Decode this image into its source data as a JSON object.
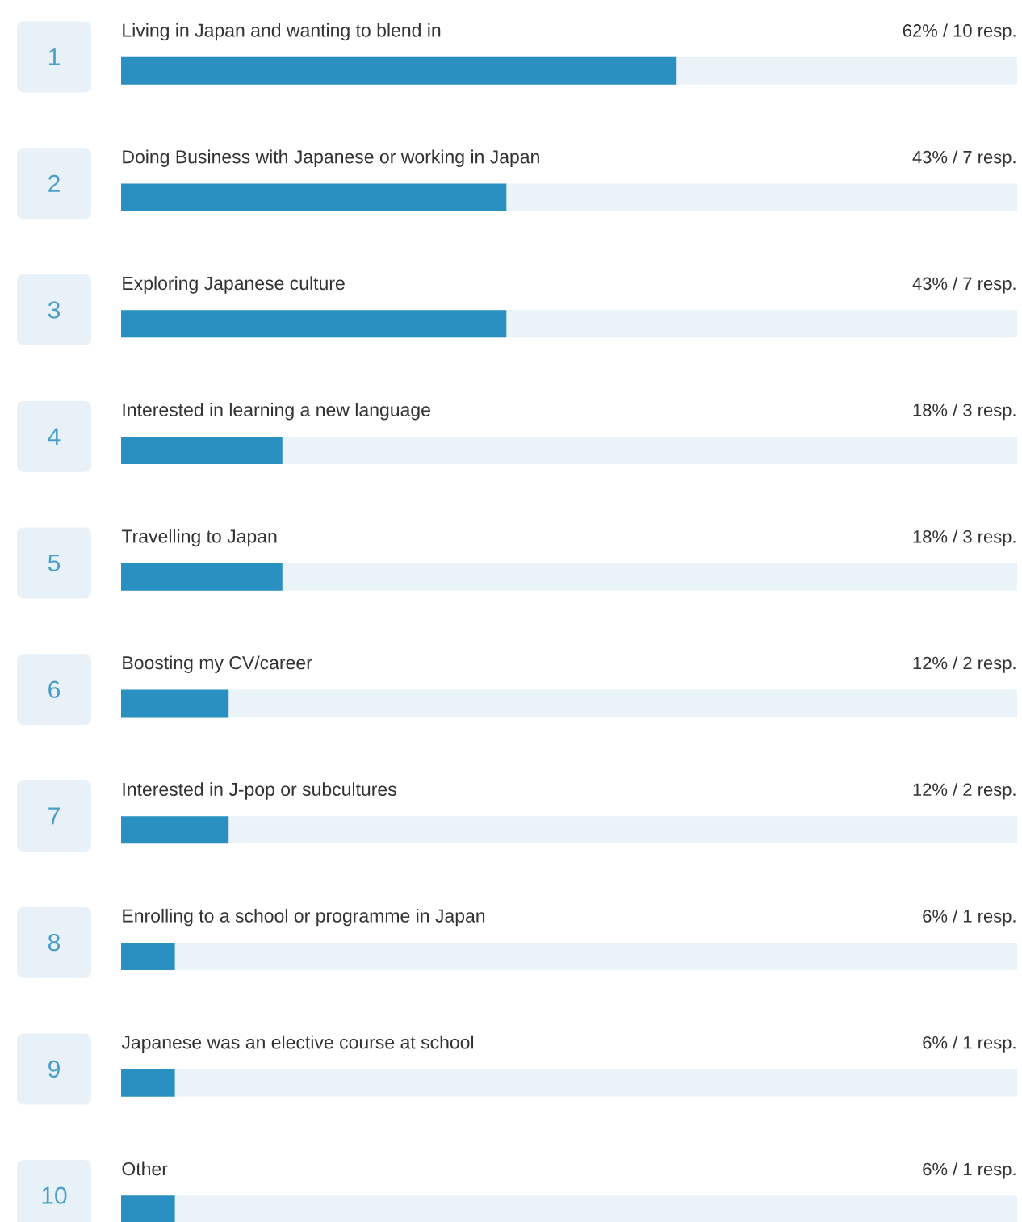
{
  "chart_data": {
    "type": "bar",
    "orientation": "horizontal",
    "categories": [
      "Living in Japan and wanting to blend in",
      "Doing Business with Japanese or working in Japan",
      "Exploring Japanese culture",
      "Interested in learning a new language",
      "Travelling to Japan",
      "Boosting my CV/career",
      "Interested in J-pop or subcultures",
      "Enrolling to a school or programme in Japan",
      "Japanese was an elective course at school",
      "Other"
    ],
    "values": [
      62,
      43,
      43,
      18,
      18,
      12,
      12,
      6,
      6,
      6
    ],
    "value_labels": [
      "62% / 10 resp.",
      "43% / 7 resp.",
      "43% / 7 resp.",
      "18% / 3 resp.",
      "18% / 3 resp.",
      "12% / 2 resp.",
      "12% / 2 resp.",
      "6% / 1 resp.",
      "6% / 1 resp.",
      "6% / 1 resp."
    ],
    "annotations": [
      "1",
      "2",
      "3",
      "4",
      "5",
      "6",
      "7",
      "8",
      "9",
      "10"
    ],
    "color": "#2a8fc1",
    "xlim": [
      0,
      100
    ]
  }
}
